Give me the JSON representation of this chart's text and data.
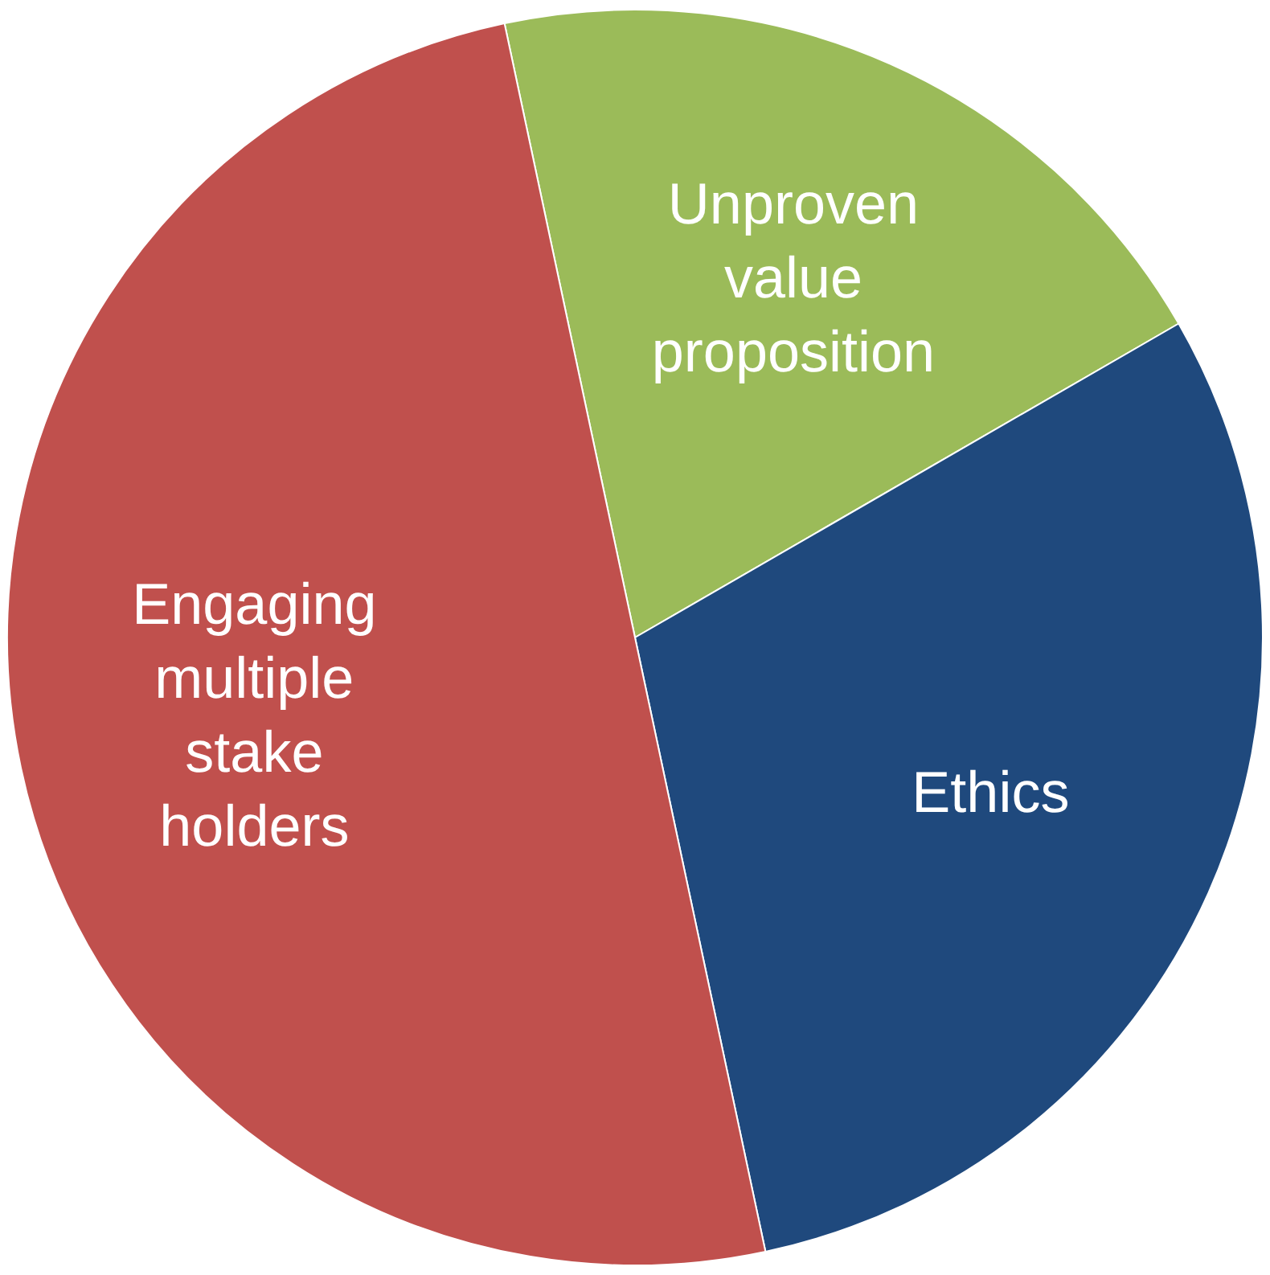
{
  "chart_data": {
    "type": "pie",
    "categories": [
      "Unproven value proposition",
      "Ethics",
      "Engaging multiple stake holders"
    ],
    "values": [
      20,
      30,
      50
    ],
    "colors": [
      "#9bbb59",
      "#1f497d",
      "#c0504d"
    ],
    "legend": false
  }
}
